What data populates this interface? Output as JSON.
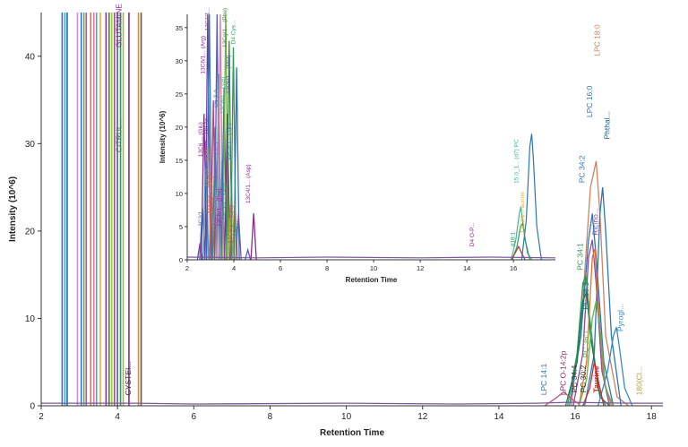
{
  "chart_data": [
    {
      "type": "line",
      "title": "",
      "xlabel": "Retention Time",
      "ylabel": "Intensity (10^6)",
      "xlim": [
        2,
        18.3
      ],
      "ylim": [
        0,
        45
      ],
      "x_ticks": [
        "2",
        "4",
        "6",
        "8",
        "10",
        "12",
        "14",
        "16",
        "18"
      ],
      "y_ticks": [
        "0",
        "10",
        "20",
        "30",
        "40"
      ],
      "grid": false,
      "legend": "none",
      "clipped_lines": [
        {
          "x": 2.55,
          "color": "#2e75b6"
        },
        {
          "x": 2.62,
          "color": "#4a9fd0"
        },
        {
          "x": 2.68,
          "color": "#1a6fa8"
        },
        {
          "x": 2.95,
          "color": "#d98ad0"
        },
        {
          "x": 3.05,
          "color": "#2e75b6"
        },
        {
          "x": 3.12,
          "color": "#70b040"
        },
        {
          "x": 3.18,
          "color": "#a05cc0"
        },
        {
          "x": 3.3,
          "color": "#e07030"
        },
        {
          "x": 3.38,
          "color": "#e07ab0"
        },
        {
          "x": 3.45,
          "color": "#4ab09a"
        },
        {
          "x": 3.55,
          "color": "#e0b030"
        },
        {
          "x": 3.7,
          "color": "#7a3a9a"
        },
        {
          "x": 3.78,
          "color": "#3a8a3a"
        },
        {
          "x": 3.85,
          "color": "#9acd32"
        },
        {
          "x": 3.92,
          "color": "#c04080"
        },
        {
          "x": 4.0,
          "color": "#5a5ac0"
        },
        {
          "x": 4.08,
          "color": "#2e9a5a"
        },
        {
          "x": 4.15,
          "color": "#b0b040"
        },
        {
          "x": 4.3,
          "color": "#8a2a8a"
        },
        {
          "x": 4.55,
          "color": "#c09050"
        },
        {
          "x": 4.62,
          "color": "#7a5030"
        }
      ],
      "series": [
        {
          "color": "#d08060",
          "points": [
            [
              15.9,
              0
            ],
            [
              16.2,
              12
            ],
            [
              16.4,
              25
            ],
            [
              16.55,
              28
            ],
            [
              16.65,
              22
            ],
            [
              16.8,
              8
            ],
            [
              17.1,
              1
            ],
            [
              17.4,
              0
            ]
          ]
        },
        {
          "color": "#2e75b6",
          "points": [
            [
              15.85,
              0
            ],
            [
              16.15,
              8
            ],
            [
              16.35,
              19
            ],
            [
              16.45,
              22
            ],
            [
              16.55,
              17
            ],
            [
              16.75,
              5
            ],
            [
              17.0,
              0
            ]
          ]
        },
        {
          "color": "#2e75b6",
          "points": [
            [
              16.25,
              0
            ],
            [
              16.5,
              6
            ],
            [
              16.65,
              22
            ],
            [
              16.72,
              25
            ],
            [
              16.8,
              20
            ],
            [
              16.95,
              8
            ],
            [
              17.2,
              0
            ]
          ]
        },
        {
          "color": "#8a4aa0",
          "points": [
            [
              15.95,
              0
            ],
            [
              16.2,
              6
            ],
            [
              16.35,
              17
            ],
            [
              16.45,
              19
            ],
            [
              16.55,
              14
            ],
            [
              16.7,
              4
            ],
            [
              16.9,
              0
            ]
          ]
        },
        {
          "color": "#2e9a5a",
          "points": [
            [
              15.8,
              0
            ],
            [
              16.05,
              6
            ],
            [
              16.2,
              14
            ],
            [
              16.28,
              15
            ],
            [
              16.38,
              10
            ],
            [
              16.6,
              2
            ],
            [
              16.8,
              0
            ]
          ]
        },
        {
          "color": "#1a7a5a",
          "points": [
            [
              15.75,
              0
            ],
            [
              16.05,
              5
            ],
            [
              16.2,
              12
            ],
            [
              16.3,
              13
            ],
            [
              16.4,
              8
            ],
            [
              16.65,
              1
            ],
            [
              16.9,
              0
            ]
          ]
        },
        {
          "color": "#e07030",
          "points": [
            [
              16.1,
              0
            ],
            [
              16.3,
              5
            ],
            [
              16.45,
              17
            ],
            [
              16.52,
              18
            ],
            [
              16.6,
              12
            ],
            [
              16.75,
              3
            ],
            [
              16.95,
              0
            ]
          ]
        },
        {
          "color": "#6ab04c",
          "points": [
            [
              16.1,
              0
            ],
            [
              16.3,
              3
            ],
            [
              16.45,
              10
            ],
            [
              16.55,
              12
            ],
            [
              16.65,
              9
            ],
            [
              16.8,
              2
            ],
            [
              17.0,
              0
            ]
          ]
        },
        {
          "color": "#3a8ac0",
          "points": [
            [
              16.6,
              0
            ],
            [
              16.85,
              4
            ],
            [
              17.0,
              8
            ],
            [
              17.08,
              9
            ],
            [
              17.15,
              7
            ],
            [
              17.3,
              2
            ],
            [
              17.5,
              0
            ]
          ]
        },
        {
          "color": "#c03030",
          "points": [
            [
              16.2,
              0
            ],
            [
              16.38,
              2
            ],
            [
              16.5,
              5
            ],
            [
              16.6,
              3
            ],
            [
              16.75,
              0
            ]
          ]
        },
        {
          "color": "#7a5a9a",
          "points": [
            [
              2.0,
              0.3
            ],
            [
              4.5,
              0.3
            ],
            [
              6.0,
              0.2
            ],
            [
              10.0,
              0.3
            ],
            [
              13.0,
              0.2
            ],
            [
              15.0,
              0.3
            ],
            [
              15.8,
              0.4
            ],
            [
              17.5,
              0.3
            ],
            [
              18.3,
              0.3
            ]
          ]
        },
        {
          "color": "#c05080",
          "points": [
            [
              15.2,
              0
            ],
            [
              15.5,
              0.9
            ],
            [
              15.7,
              1.6
            ],
            [
              15.9,
              0.8
            ],
            [
              16.1,
              0.2
            ]
          ]
        }
      ],
      "labels": [
        {
          "text": "GLUTAMINE",
          "x": 4.1,
          "y": 41,
          "color": "#8a2a8a"
        },
        {
          "text": "CITRUL...",
          "x": 4.1,
          "y": 29,
          "color": "#3a7a5a"
        },
        {
          "text": "CYSTEI...",
          "x": 4.35,
          "y": 1.2,
          "color": "#333333"
        },
        {
          "text": "LPC 18:0",
          "x": 16.65,
          "y": 40,
          "color": "#d08060"
        },
        {
          "text": "LPC 16:0",
          "x": 16.45,
          "y": 33,
          "color": "#2e75b6"
        },
        {
          "text": "Phthal...",
          "x": 16.9,
          "y": 30.5,
          "color": "#1a5a8a"
        },
        {
          "text": "PC 34:2",
          "x": 16.25,
          "y": 25.5,
          "color": "#2e75b6"
        },
        {
          "text": "Ricino...",
          "x": 16.6,
          "y": 19.5,
          "color": "#8a4aa0"
        },
        {
          "text": "PC 34:1",
          "x": 16.2,
          "y": 15.5,
          "color": "#2e9a5a"
        },
        {
          "text": "PC 36:3",
          "x": 16.35,
          "y": 11,
          "color": "#1a7a5a"
        },
        {
          "text": "Pyrogl...",
          "x": 17.25,
          "y": 8.5,
          "color": "#3a8ac0"
        },
        {
          "text": "PC 36:1",
          "x": 16.35,
          "y": 5.5,
          "color": "#6ab04c"
        },
        {
          "text": "PC 34:4",
          "x": 16.05,
          "y": 1.5,
          "color": "#333333"
        },
        {
          "text": "PC 30:2",
          "x": 16.28,
          "y": 1.5,
          "color": "#333333"
        },
        {
          "text": "Taurine",
          "x": 16.62,
          "y": 1.5,
          "color": "#cc2222"
        },
        {
          "text": "LPC 14:1",
          "x": 15.25,
          "y": 1.2,
          "color": "#2e75b6"
        },
        {
          "text": "LPC O-14:2p",
          "x": 15.75,
          "y": 1.2,
          "color": "#8a2a5a"
        },
        {
          "text": "180(Cl...",
          "x": 17.75,
          "y": 1.2,
          "color": "#b0a030"
        }
      ]
    },
    {
      "type": "line",
      "title": "",
      "xlabel": "Retention Time",
      "ylabel": "Intensity (10^6)",
      "xlim": [
        2,
        17.8
      ],
      "ylim": [
        0,
        37
      ],
      "x_ticks": [
        "2",
        "4",
        "6",
        "8",
        "10",
        "12",
        "14",
        "16"
      ],
      "y_ticks": [
        "0",
        "5",
        "10",
        "15",
        "20",
        "25",
        "30",
        "35"
      ],
      "grid": false,
      "legend": "none",
      "peaks": [
        {
          "x": 2.55,
          "y": 2.5,
          "color": "#7a3a9a"
        },
        {
          "x": 2.65,
          "y": 8,
          "color": "#2e75b6"
        },
        {
          "x": 2.72,
          "y": 22,
          "color": "#8a2a8a"
        },
        {
          "x": 2.8,
          "y": 18,
          "color": "#4a9fd0"
        },
        {
          "x": 2.88,
          "y": 37,
          "color": "#7a3a9a"
        },
        {
          "x": 2.95,
          "y": 37,
          "color": "#2e75b6"
        },
        {
          "x": 3.05,
          "y": 12,
          "color": "#e07030"
        },
        {
          "x": 3.12,
          "y": 24,
          "color": "#c04080"
        },
        {
          "x": 3.2,
          "y": 20,
          "color": "#2e9a5a"
        },
        {
          "x": 3.28,
          "y": 37,
          "color": "#5a5ac0"
        },
        {
          "x": 3.35,
          "y": 28,
          "color": "#4ab09a"
        },
        {
          "x": 3.42,
          "y": 37,
          "color": "#e07ab0"
        },
        {
          "x": 3.5,
          "y": 15,
          "color": "#a05cc0"
        },
        {
          "x": 3.58,
          "y": 26,
          "color": "#2e75b6"
        },
        {
          "x": 3.65,
          "y": 37,
          "color": "#70b040"
        },
        {
          "x": 3.72,
          "y": 22,
          "color": "#8a2a8a"
        },
        {
          "x": 3.8,
          "y": 33,
          "color": "#3a8a3a"
        },
        {
          "x": 3.9,
          "y": 12,
          "color": "#e0b030"
        },
        {
          "x": 3.98,
          "y": 32,
          "color": "#2e9a5a"
        },
        {
          "x": 4.05,
          "y": 9,
          "color": "#c09050"
        },
        {
          "x": 4.12,
          "y": 29,
          "color": "#2e75b6"
        },
        {
          "x": 4.2,
          "y": 7,
          "color": "#7a5a9a"
        },
        {
          "x": 4.6,
          "y": 1.5,
          "color": "#5a5ac0"
        },
        {
          "x": 4.85,
          "y": 7,
          "color": "#8a2a8a"
        }
      ],
      "series": [
        {
          "color": "#2e75b6",
          "points": [
            [
              16.35,
              0
            ],
            [
              16.55,
              6
            ],
            [
              16.7,
              17
            ],
            [
              16.78,
              19
            ],
            [
              16.86,
              15
            ],
            [
              17.0,
              5
            ],
            [
              17.2,
              0
            ]
          ]
        },
        {
          "color": "#4ab09a",
          "points": [
            [
              15.9,
              0
            ],
            [
              16.1,
              3
            ],
            [
              16.25,
              7
            ],
            [
              16.32,
              8
            ],
            [
              16.42,
              5
            ],
            [
              16.6,
              1
            ],
            [
              16.8,
              0
            ]
          ]
        },
        {
          "color": "#2e9a5a",
          "points": [
            [
              15.95,
              0
            ],
            [
              16.15,
              2
            ],
            [
              16.3,
              5
            ],
            [
              16.4,
              5.5
            ],
            [
              16.5,
              3
            ],
            [
              16.7,
              0
            ]
          ]
        },
        {
          "color": "#c03030",
          "points": [
            [
              15.9,
              0
            ],
            [
              16.1,
              1.2
            ],
            [
              16.22,
              2
            ],
            [
              16.35,
              1
            ],
            [
              16.5,
              0
            ]
          ]
        },
        {
          "color": "#7a5a9a",
          "points": [
            [
              2.0,
              0.4
            ],
            [
              5.0,
              0.3
            ],
            [
              8.0,
              0.4
            ],
            [
              12.0,
              0.3
            ],
            [
              15.0,
              0.4
            ],
            [
              17.8,
              0.3
            ]
          ]
        }
      ],
      "labels": [
        {
          "text": "13C7/1...",
          "x": 2.95,
          "y": 34.5,
          "color": "#7a3a9a"
        },
        {
          "text": "13C6/1... (Arg)",
          "x": 2.75,
          "y": 28,
          "color": "#8a2a8a"
        },
        {
          "text": "13Cg/1... (Phe)",
          "x": 3.7,
          "y": 32,
          "color": "#3a8a3a"
        },
        {
          "text": "D4 Cys...",
          "x": 4.05,
          "y": 32.5,
          "color": "#2e9a5a"
        },
        {
          "text": "13C5/1... (Met)",
          "x": 3.85,
          "y": 25,
          "color": "#5a5ac0"
        },
        {
          "text": "D6 3-A...",
          "x": 3.3,
          "y": 23,
          "color": "#2e75b6"
        },
        {
          "text": "13C6/1... (Val)",
          "x": 3.6,
          "y": 22,
          "color": "#4ab09a"
        },
        {
          "text": "13C9/1... (Tyr)",
          "x": 3.85,
          "y": 15,
          "color": "#2e75b6"
        },
        {
          "text": "13C6 ... (Glu)",
          "x": 2.65,
          "y": 15.5,
          "color": "#8a2a8a"
        },
        {
          "text": "D8 Ac...",
          "x": 2.9,
          "y": 19,
          "color": "#7a3a9a"
        },
        {
          "text": "13C3/1... (Ser)",
          "x": 3.3,
          "y": 12,
          "color": "#a05cc0"
        },
        {
          "text": "13C5/1... (Gly)",
          "x": 2.95,
          "y": 11,
          "color": "#c09050"
        },
        {
          "text": "13C4/1... (Asp)",
          "x": 4.7,
          "y": 8.5,
          "color": "#8a2a8a"
        },
        {
          "text": "15N2/1... (Gln)",
          "x": 3.05,
          "y": 7,
          "color": "#e07030"
        },
        {
          "text": "3C2/1...",
          "x": 2.65,
          "y": 5,
          "color": "#7a5a9a"
        },
        {
          "text": "13C3/1... (Ala)",
          "x": 3.7,
          "y": 6,
          "color": "#2e9a5a"
        },
        {
          "text": "13C5/1... (Pro)",
          "x": 3.45,
          "y": 5,
          "color": "#8a2a8a"
        },
        {
          "text": "13C...",
          "x": 4.15,
          "y": 3.5,
          "color": "#2e75b6"
        },
        {
          "text": "13C6/1... (Leu)",
          "x": 3.25,
          "y": 3.5,
          "color": "#a05cc0"
        },
        {
          "text": "13C6/1... (Lys)",
          "x": 3.95,
          "y": 2.5,
          "color": "#c04080"
        },
        {
          "text": "15.0_1... (d7) PC",
          "x": 16.2,
          "y": 11.5,
          "color": "#4ab09a"
        },
        {
          "text": "d18:1",
          "x": 16.05,
          "y": 2,
          "color": "#2e9a5a"
        },
        {
          "text": "13C2/1... aurine",
          "x": 16.45,
          "y": 4,
          "color": "#e0b030"
        },
        {
          "text": "D4 O-P...",
          "x": 14.3,
          "y": 2,
          "color": "#8a2a8a"
        }
      ]
    }
  ]
}
